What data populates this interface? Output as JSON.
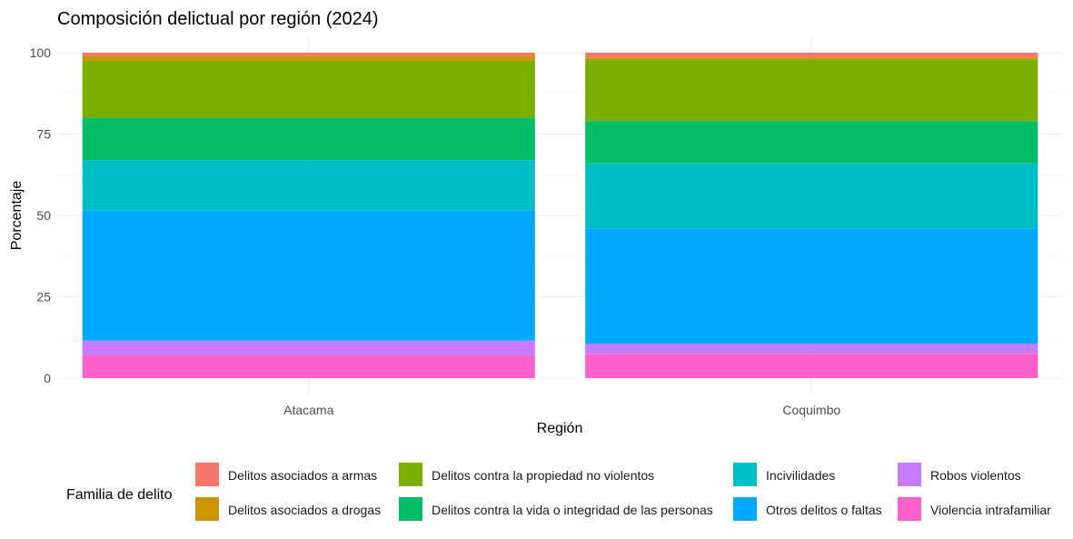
{
  "chart_data": {
    "type": "bar",
    "stacked": true,
    "title": "Composición delictual por región (2024)",
    "xlabel": "Región",
    "ylabel": "Porcentaje",
    "ylim": [
      0,
      100
    ],
    "yticks": [
      0,
      25,
      50,
      75,
      100
    ],
    "categories": [
      "Atacama",
      "Coquimbo"
    ],
    "legend_title": "Familia de delito",
    "legend_position": "bottom",
    "series": [
      {
        "name": "Delitos asociados a armas",
        "color": "#F8766D",
        "values": [
          1.0,
          1.5
        ]
      },
      {
        "name": "Delitos asociados a drogas",
        "color": "#CD9600",
        "values": [
          1.5,
          0.5
        ]
      },
      {
        "name": "Delitos contra la propiedad no violentos",
        "color": "#7CAE00",
        "values": [
          17.5,
          19.0
        ]
      },
      {
        "name": "Delitos contra la vida o integridad de las personas",
        "color": "#00BE67",
        "values": [
          13.0,
          13.0
        ]
      },
      {
        "name": "Incivilidades",
        "color": "#00BFC4",
        "values": [
          15.5,
          20.0
        ]
      },
      {
        "name": "Otros delitos o faltas",
        "color": "#00A9FF",
        "values": [
          40.0,
          35.5
        ]
      },
      {
        "name": "Robos violentos",
        "color": "#C77CFF",
        "values": [
          4.5,
          3.0
        ]
      },
      {
        "name": "Violencia intrafamiliar",
        "color": "#FF61CC",
        "values": [
          7.0,
          7.5
        ]
      }
    ],
    "grid": true
  }
}
